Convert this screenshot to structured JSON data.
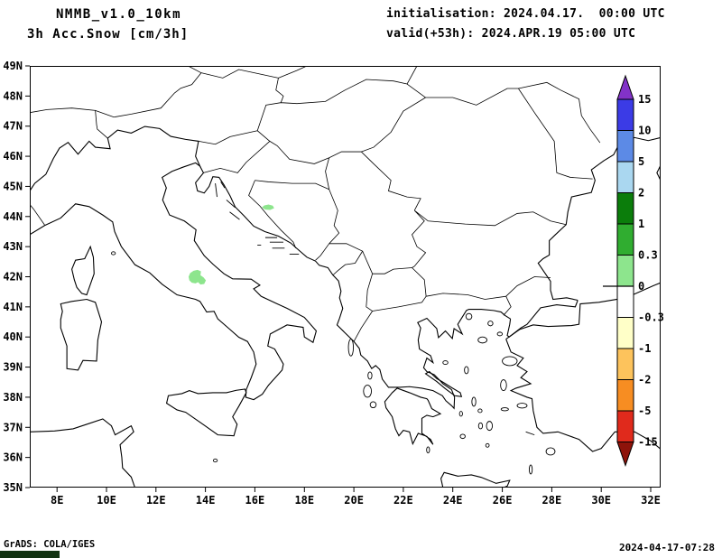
{
  "header": {
    "model": "NMMB_v1.0_10km",
    "variable": "3h Acc.Snow [cm/3h]",
    "initialisation": "initialisation: 2024.04.17.  00:00 UTC",
    "valid": "valid(+53h): 2024.APR.19 05:00 UTC"
  },
  "footer": {
    "left": "GrADS: COLA/IGES",
    "right": "2024-04-17-07:28"
  },
  "colors": {
    "background": "#ffffff",
    "map_lines": "#000000",
    "corner_box": "#123312"
  },
  "chart_data": {
    "type": "heatmap",
    "title": "3h Acc.Snow [cm/3h]",
    "model": "NMMB_v1.0_10km",
    "units": "cm/3h",
    "projection": "lat-lon",
    "region": "Italy and Balkan peninsula",
    "lon_range": [
      6.9,
      32.4
    ],
    "lat_range": [
      35,
      49
    ],
    "grid": false,
    "legend_position": "right",
    "lon_ticks": [
      {
        "v": 8,
        "label": "8E"
      },
      {
        "v": 10,
        "label": "10E"
      },
      {
        "v": 12,
        "label": "12E"
      },
      {
        "v": 14,
        "label": "14E"
      },
      {
        "v": 16,
        "label": "16E"
      },
      {
        "v": 18,
        "label": "18E"
      },
      {
        "v": 20,
        "label": "20E"
      },
      {
        "v": 22,
        "label": "22E"
      },
      {
        "v": 24,
        "label": "24E"
      },
      {
        "v": 26,
        "label": "26E"
      },
      {
        "v": 28,
        "label": "28E"
      },
      {
        "v": 30,
        "label": "30E"
      },
      {
        "v": 32,
        "label": "32E"
      }
    ],
    "lat_ticks": [
      {
        "v": 49,
        "label": "49N"
      },
      {
        "v": 48,
        "label": "48N"
      },
      {
        "v": 47,
        "label": "47N"
      },
      {
        "v": 46,
        "label": "46N"
      },
      {
        "v": 45,
        "label": "45N"
      },
      {
        "v": 44,
        "label": "44N"
      },
      {
        "v": 43,
        "label": "43N"
      },
      {
        "v": 42,
        "label": "42N"
      },
      {
        "v": 41,
        "label": "41N"
      },
      {
        "v": 40,
        "label": "40N"
      },
      {
        "v": 39,
        "label": "39N"
      },
      {
        "v": 38,
        "label": "38N"
      },
      {
        "v": 37,
        "label": "37N"
      },
      {
        "v": 36,
        "label": "36N"
      },
      {
        "v": 35,
        "label": "35N"
      }
    ],
    "colorbar": {
      "labels": [
        "15",
        "10",
        "5",
        "2",
        "1",
        "0.3",
        "0",
        "-0.3",
        "-1",
        "-2",
        "-5",
        "-15"
      ],
      "segment_colors": [
        "#3b3be6",
        "#5c8ae6",
        "#aad7f0",
        "#0b7d0b",
        "#30ad30",
        "#8de58d",
        "#ffffff",
        "#ffffc8",
        "#fdc35c",
        "#f78d22",
        "#e02a1c"
      ],
      "above_color": "#8232c8",
      "below_color": "#8e130a",
      "zero_label": "0"
    },
    "patch_fill": "#8de58d",
    "snow_patches": [
      {
        "name": "dinaric-alps",
        "approx_value_cm": "0-0.3",
        "polygon": [
          [
            16.28,
            44.3
          ],
          [
            16.38,
            44.37
          ],
          [
            16.55,
            44.4
          ],
          [
            16.72,
            44.36
          ],
          [
            16.78,
            44.28
          ],
          [
            16.62,
            44.22
          ],
          [
            16.42,
            44.23
          ]
        ]
      },
      {
        "name": "apennines",
        "approx_value_cm": "0-0.3",
        "polygon": [
          [
            13.32,
            42.0
          ],
          [
            13.38,
            42.12
          ],
          [
            13.52,
            42.2
          ],
          [
            13.68,
            42.23
          ],
          [
            13.82,
            42.18
          ],
          [
            13.8,
            42.05
          ],
          [
            13.92,
            41.98
          ],
          [
            14.02,
            41.88
          ],
          [
            13.95,
            41.76
          ],
          [
            13.8,
            41.74
          ],
          [
            13.7,
            41.82
          ],
          [
            13.6,
            41.78
          ],
          [
            13.45,
            41.8
          ],
          [
            13.35,
            41.88
          ]
        ]
      }
    ]
  }
}
